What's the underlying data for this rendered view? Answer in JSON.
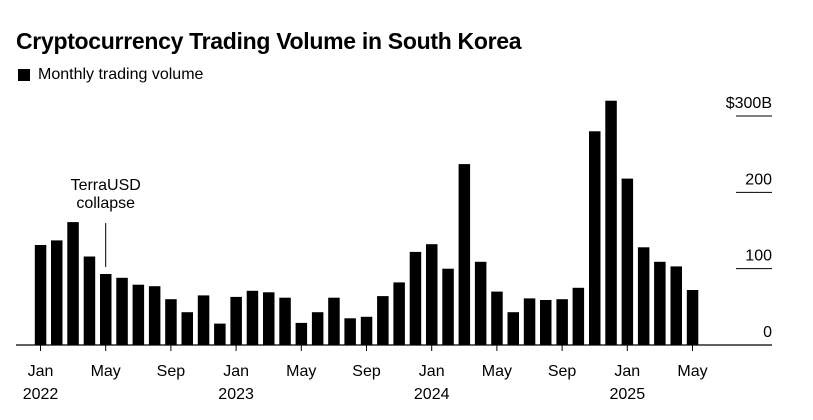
{
  "title": "Cryptocurrency Trading Volume in South Korea",
  "legend": {
    "label": "Monthly trading volume",
    "color": "#000000"
  },
  "chart_data": {
    "type": "bar",
    "title": "Cryptocurrency Trading Volume in South Korea",
    "unit": "$B",
    "ylim": [
      0,
      300
    ],
    "y_ticks": [
      {
        "value": 0,
        "label": "0"
      },
      {
        "value": 100,
        "label": "100"
      },
      {
        "value": 200,
        "label": "200"
      },
      {
        "value": 300,
        "label": "$300B"
      }
    ],
    "x_ticks": [
      {
        "index": 0,
        "label": "Jan",
        "year": "2022"
      },
      {
        "index": 4,
        "label": "May"
      },
      {
        "index": 8,
        "label": "Sep"
      },
      {
        "index": 12,
        "label": "Jan",
        "year": "2023"
      },
      {
        "index": 16,
        "label": "May"
      },
      {
        "index": 20,
        "label": "Sep"
      },
      {
        "index": 24,
        "label": "Jan",
        "year": "2024"
      },
      {
        "index": 28,
        "label": "May"
      },
      {
        "index": 32,
        "label": "Sep"
      },
      {
        "index": 36,
        "label": "Jan",
        "year": "2025"
      },
      {
        "index": 40,
        "label": "May"
      }
    ],
    "categories": [
      "2022-01",
      "2022-02",
      "2022-03",
      "2022-04",
      "2022-05",
      "2022-06",
      "2022-07",
      "2022-08",
      "2022-09",
      "2022-10",
      "2022-11",
      "2022-12",
      "2023-01",
      "2023-02",
      "2023-03",
      "2023-04",
      "2023-05",
      "2023-06",
      "2023-07",
      "2023-08",
      "2023-09",
      "2023-10",
      "2023-11",
      "2023-12",
      "2024-01",
      "2024-02",
      "2024-03",
      "2024-04",
      "2024-05",
      "2024-06",
      "2024-07",
      "2024-08",
      "2024-09",
      "2024-10",
      "2024-11",
      "2024-12",
      "2025-01",
      "2025-02",
      "2025-03",
      "2025-04",
      "2025-05"
    ],
    "series": [
      {
        "name": "Monthly trading volume",
        "color": "#000000",
        "values": [
          131,
          137,
          161,
          116,
          93,
          88,
          79,
          77,
          60,
          43,
          65,
          28,
          63,
          71,
          69,
          62,
          29,
          43,
          62,
          35,
          37,
          64,
          82,
          122,
          132,
          100,
          237,
          109,
          70,
          43,
          61,
          59,
          60,
          75,
          280,
          320,
          218,
          128,
          109,
          103,
          72
        ]
      }
    ],
    "annotations": [
      {
        "index": 4,
        "lines": [
          "TerraUSD",
          "collapse"
        ]
      }
    ],
    "grid": false
  }
}
